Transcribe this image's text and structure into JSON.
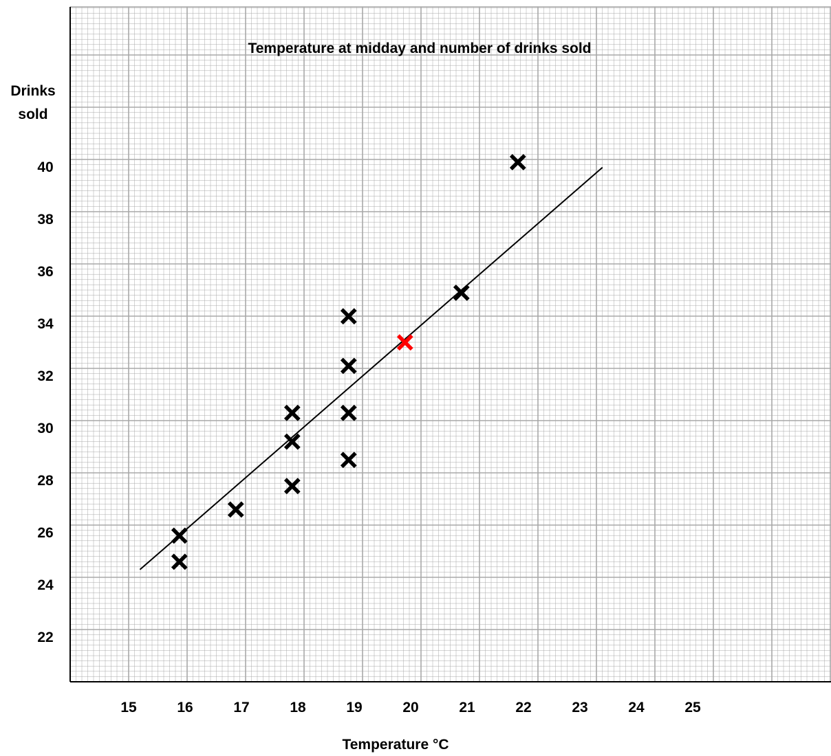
{
  "chart_data": {
    "type": "scatter",
    "title": "Temperature at midday and number of drinks sold",
    "xlabel": "Temperature °C",
    "ylabel": [
      "Drinks",
      "sold"
    ],
    "x_ticks": [
      "15",
      "16",
      "17",
      "18",
      "19",
      "20",
      "21",
      "22",
      "23",
      "24",
      "25"
    ],
    "y_ticks": [
      "22",
      "24",
      "26",
      "28",
      "30",
      "32",
      "34",
      "36",
      "38",
      "40"
    ],
    "grid": true,
    "points": [
      {
        "x": 15.9,
        "y": 25.7
      },
      {
        "x": 15.9,
        "y": 24.7
      },
      {
        "x": 16.9,
        "y": 26.7
      },
      {
        "x": 17.9,
        "y": 30.4
      },
      {
        "x": 17.9,
        "y": 29.3
      },
      {
        "x": 17.9,
        "y": 27.6
      },
      {
        "x": 18.9,
        "y": 34.1
      },
      {
        "x": 18.9,
        "y": 32.2
      },
      {
        "x": 18.9,
        "y": 30.4
      },
      {
        "x": 18.9,
        "y": 28.6
      },
      {
        "x": 20.9,
        "y": 35.0
      },
      {
        "x": 21.9,
        "y": 40.0
      }
    ],
    "highlight_point": {
      "x": 19.9,
      "y": 33.1,
      "color": "#ff0000"
    },
    "line_of_best_fit": {
      "x1": 15.2,
      "y1": 24.4,
      "x2": 23.4,
      "y2": 39.8
    },
    "marker_color": "#000000",
    "grid_color": "#a8a8a8"
  }
}
